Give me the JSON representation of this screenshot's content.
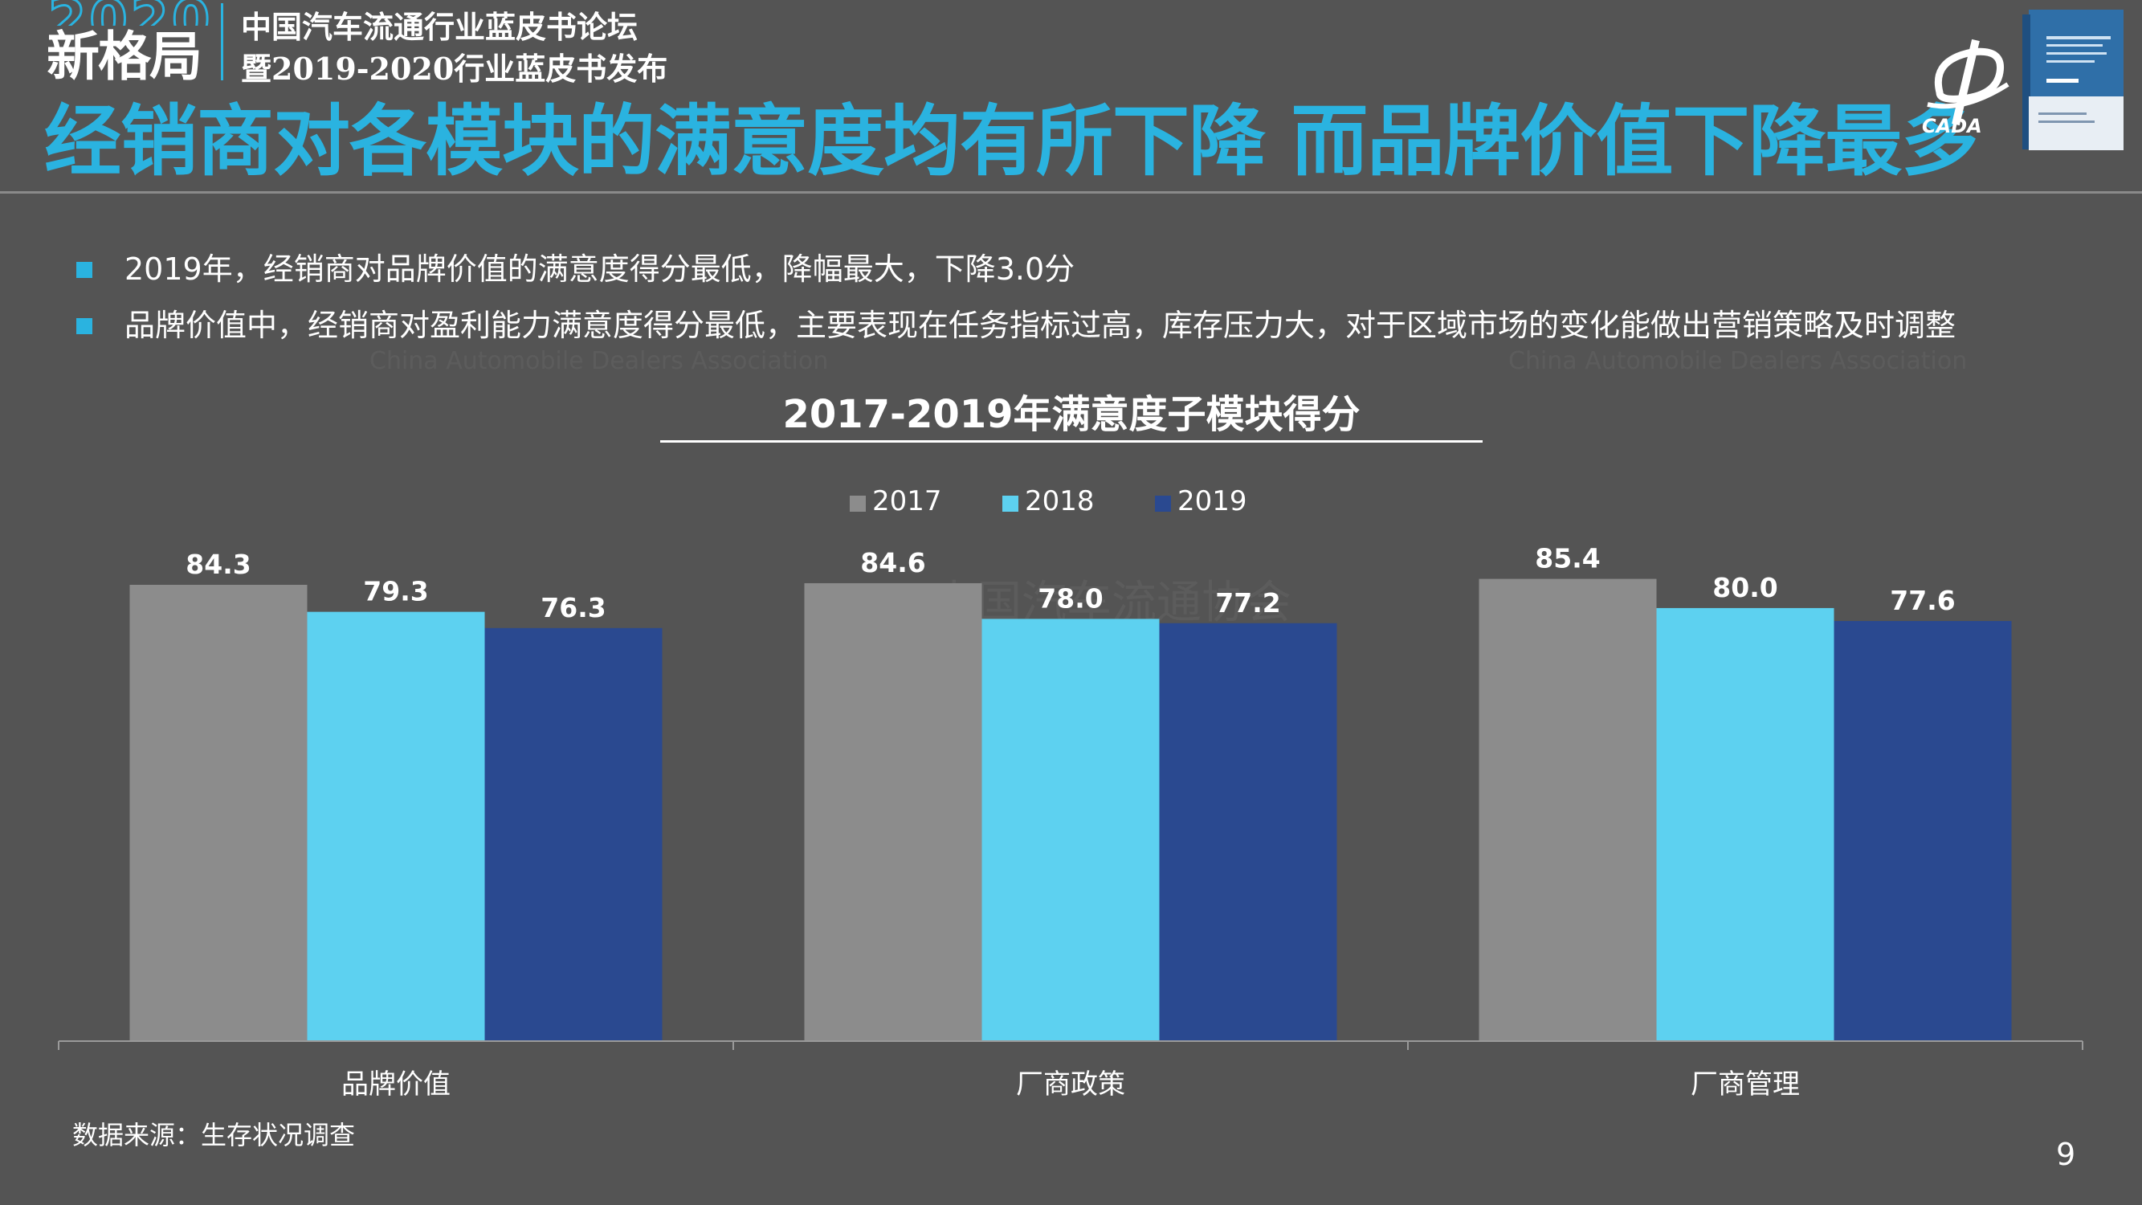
{
  "header": {
    "logo_year": "2020",
    "logo_word": "新格局",
    "forum_line1": "中国汽车流通行业蓝皮书论坛",
    "forum_line2": "暨2019-2020行业蓝皮书发布",
    "main_title": "经销商对各模块的满意度均有所下降 而品牌价值下降最多",
    "brand": "CADA"
  },
  "bullets": [
    "2019年，经销商对品牌价值的满意度得分最低，降幅最大，下降3.0分",
    "品牌价值中，经销商对盈利能力满意度得分最低，主要表现在任务指标过高，库存压力大，对于区域市场的变化能做出营销策略及时调整"
  ],
  "watermarks": {
    "cn": "中国汽车流通协会",
    "en": "China Automobile Dealers Association"
  },
  "chart_data": {
    "type": "bar",
    "title": "2017-2019年满意度子模块得分",
    "categories": [
      "品牌价值",
      "厂商政策",
      "厂商管理"
    ],
    "series": [
      {
        "name": "2017",
        "values": [
          84.3,
          84.6,
          85.4
        ],
        "color": "#8c8c8c"
      },
      {
        "name": "2018",
        "values": [
          79.3,
          78.0,
          80.0
        ],
        "color": "#5dd1f0"
      },
      {
        "name": "2019",
        "values": [
          76.3,
          77.2,
          77.6
        ],
        "color": "#2a4990"
      }
    ],
    "legend_position": "top-center",
    "grid": false,
    "y_axis_visible": false,
    "data_labels": true,
    "label_format": "0.0",
    "ylim": [
      0,
      86
    ]
  },
  "footer": {
    "source": "数据来源：生存状况调查",
    "page_number": "9"
  }
}
